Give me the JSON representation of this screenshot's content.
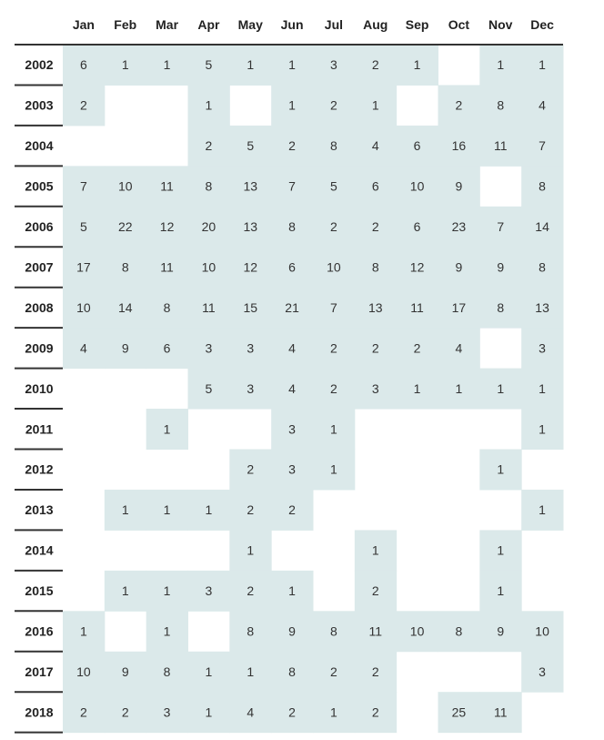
{
  "chart_data": {
    "type": "heatmap",
    "title": "",
    "months": [
      "Jan",
      "Feb",
      "Mar",
      "Apr",
      "May",
      "Jun",
      "Jul",
      "Aug",
      "Sep",
      "Oct",
      "Nov",
      "Dec"
    ],
    "years": [
      "2002",
      "2003",
      "2004",
      "2005",
      "2006",
      "2007",
      "2008",
      "2009",
      "2010",
      "2011",
      "2012",
      "2013",
      "2014",
      "2015",
      "2016",
      "2017",
      "2018"
    ],
    "values": [
      [
        6,
        1,
        1,
        5,
        1,
        1,
        3,
        2,
        1,
        null,
        1,
        1
      ],
      [
        2,
        null,
        null,
        1,
        null,
        1,
        2,
        1,
        null,
        2,
        8,
        4
      ],
      [
        null,
        null,
        null,
        2,
        5,
        2,
        8,
        4,
        6,
        16,
        11,
        7
      ],
      [
        7,
        10,
        11,
        8,
        13,
        7,
        5,
        6,
        10,
        9,
        null,
        8
      ],
      [
        5,
        22,
        12,
        20,
        13,
        8,
        2,
        2,
        6,
        23,
        7,
        14
      ],
      [
        17,
        8,
        11,
        10,
        12,
        6,
        10,
        8,
        12,
        9,
        9,
        8
      ],
      [
        10,
        14,
        8,
        11,
        15,
        21,
        7,
        13,
        11,
        17,
        8,
        13
      ],
      [
        4,
        9,
        6,
        3,
        3,
        4,
        2,
        2,
        2,
        4,
        null,
        3
      ],
      [
        null,
        null,
        null,
        5,
        3,
        4,
        2,
        3,
        1,
        1,
        1,
        1
      ],
      [
        null,
        null,
        1,
        null,
        null,
        3,
        1,
        null,
        null,
        null,
        null,
        1
      ],
      [
        null,
        null,
        null,
        null,
        2,
        3,
        1,
        null,
        null,
        null,
        1,
        null
      ],
      [
        null,
        1,
        1,
        1,
        2,
        2,
        null,
        null,
        null,
        null,
        null,
        1
      ],
      [
        null,
        null,
        null,
        null,
        1,
        null,
        null,
        1,
        null,
        null,
        1,
        null
      ],
      [
        null,
        1,
        1,
        3,
        2,
        1,
        null,
        2,
        null,
        null,
        1,
        null
      ],
      [
        1,
        null,
        1,
        null,
        8,
        9,
        8,
        11,
        10,
        8,
        9,
        10
      ],
      [
        10,
        9,
        8,
        1,
        1,
        8,
        2,
        2,
        null,
        null,
        null,
        3
      ],
      [
        2,
        2,
        3,
        1,
        4,
        2,
        1,
        2,
        null,
        25,
        11,
        null
      ]
    ],
    "cell_color": "#dbe9ea",
    "line_color": "#333333",
    "text_color": "#333333"
  }
}
